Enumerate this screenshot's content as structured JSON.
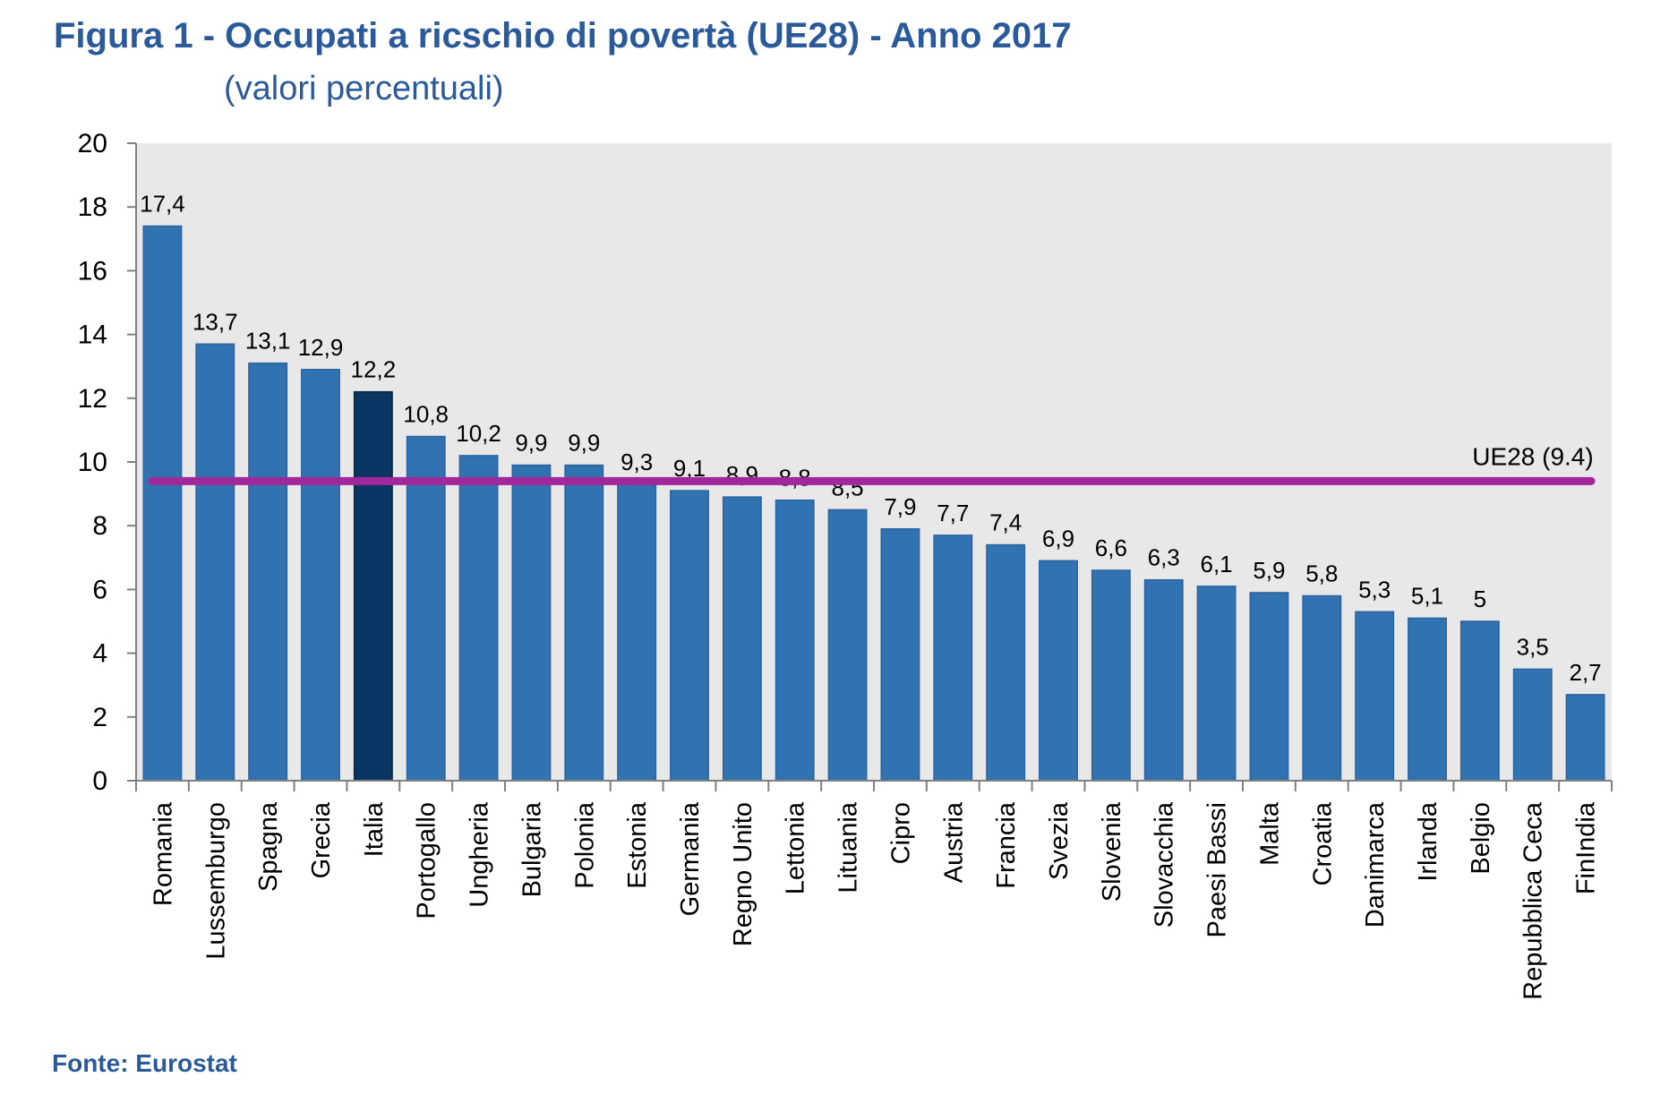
{
  "header": {
    "title": "Figura 1  - Occupati a ricschio di povertà (UE28) - Anno 2017",
    "subtitle": "(valori percentuali)"
  },
  "footer": {
    "source": "Fonte: Eurostat"
  },
  "colors": {
    "bar": "#3173b1",
    "bar_highlight": "#0a3462",
    "plot_bg": "#e8e8e8",
    "reference_line": "#a0289a",
    "title": "#2a5a9a"
  },
  "chart_data": {
    "type": "bar",
    "title": "Figura 1  - Occupati a ricschio di povertà (UE28) - Anno 2017",
    "subtitle": "(valori percentuali)",
    "xlabel": "",
    "ylabel": "",
    "ylim": [
      0,
      20
    ],
    "yticks": [
      0,
      2,
      4,
      6,
      8,
      10,
      12,
      14,
      16,
      18,
      20
    ],
    "grid": false,
    "categories": [
      "Romania",
      "Lussemburgo",
      "Spagna",
      "Grecia",
      "Italia",
      "Portogallo",
      "Ungheria",
      "Bulgaria",
      "Polonia",
      "Estonia",
      "Germania",
      "Regno Unito",
      "Lettonia",
      "Lituania",
      "Cipro",
      "Austria",
      "Francia",
      "Svezia",
      "Slovenia",
      "Slovacchia",
      "Paesi Bassi",
      "Malta",
      "Croatia",
      "Danimarca",
      "Irlanda",
      "Belgio",
      "Repubblica Ceca",
      "FinIndia"
    ],
    "values": [
      17.4,
      13.7,
      13.1,
      12.9,
      12.2,
      10.8,
      10.2,
      9.9,
      9.9,
      9.3,
      9.1,
      8.9,
      8.8,
      8.5,
      7.9,
      7.7,
      7.4,
      6.9,
      6.6,
      6.3,
      6.1,
      5.9,
      5.8,
      5.3,
      5.1,
      5,
      3.5,
      2.7
    ],
    "value_labels": [
      "17,4",
      "13,7",
      "13,1",
      "12,9",
      "12,2",
      "10,8",
      "10,2",
      "9,9",
      "9,9",
      "9,3",
      "9,1",
      "8,9",
      "8,8",
      "8,5",
      "7,9",
      "7,7",
      "7,4",
      "6,9",
      "6,6",
      "6,3",
      "6,1",
      "5,9",
      "5,8",
      "5,3",
      "5,1",
      "5",
      "3,5",
      "2,7"
    ],
    "highlight": "Italia",
    "reference_line": {
      "value": 9.4,
      "label": "UE28 (9.4)"
    }
  }
}
